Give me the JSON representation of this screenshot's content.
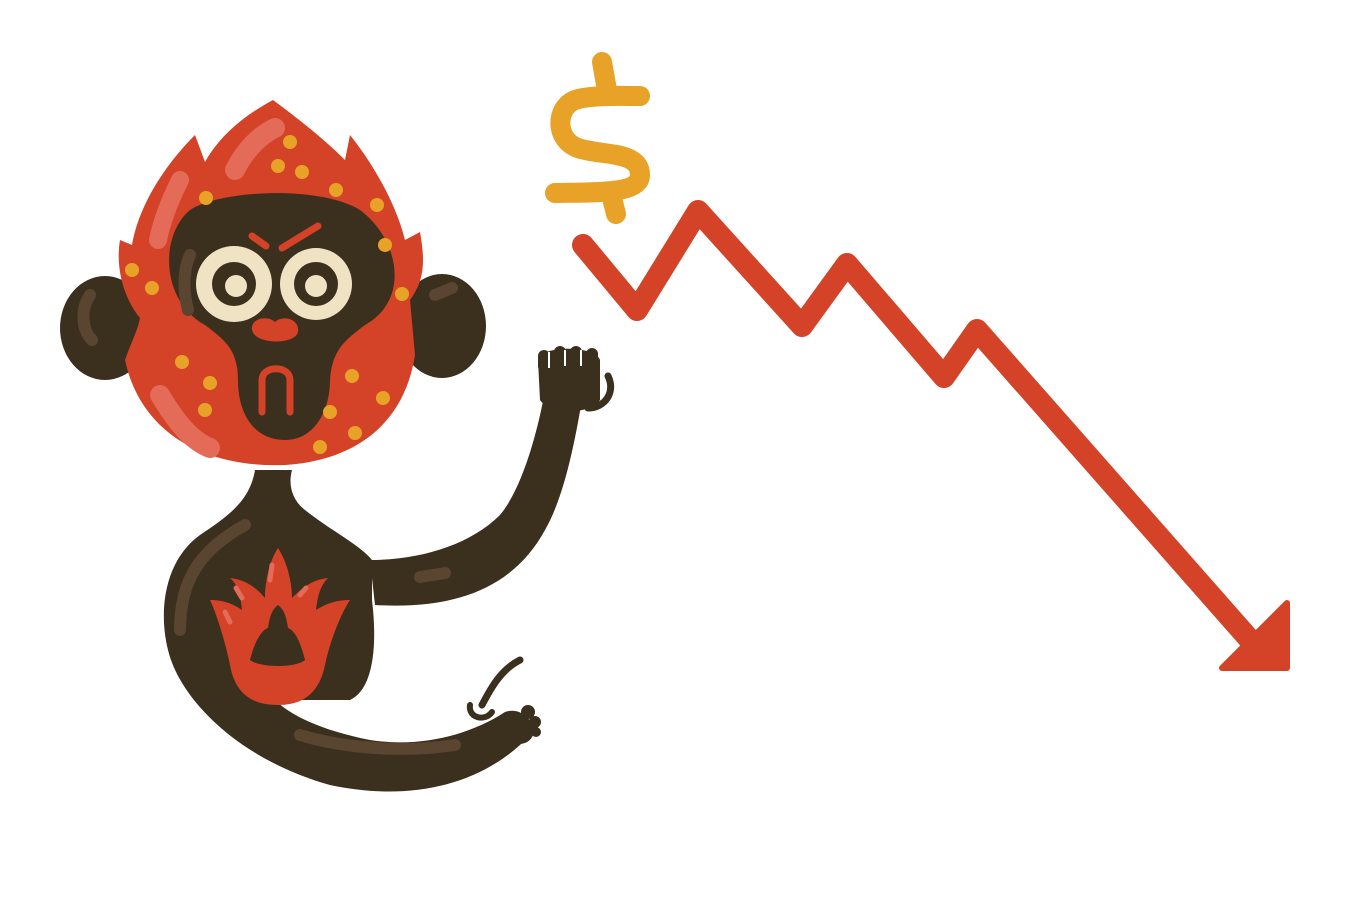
{
  "illustration": {
    "subject": "monkey-mascot-with-falling-price-arrow",
    "icons": [
      "dollar-sign-icon",
      "down-trend-arrow-icon"
    ],
    "colors": {
      "background": "#ffffff",
      "body": "#3b2f1e",
      "body_highlight": "#5a4530",
      "mask_red": "#d44228",
      "mask_highlight": "#e36b57",
      "dots": "#e8a227",
      "eyes": "#efe3c4",
      "dollar": "#e8a227",
      "arrow": "#d44228"
    }
  }
}
